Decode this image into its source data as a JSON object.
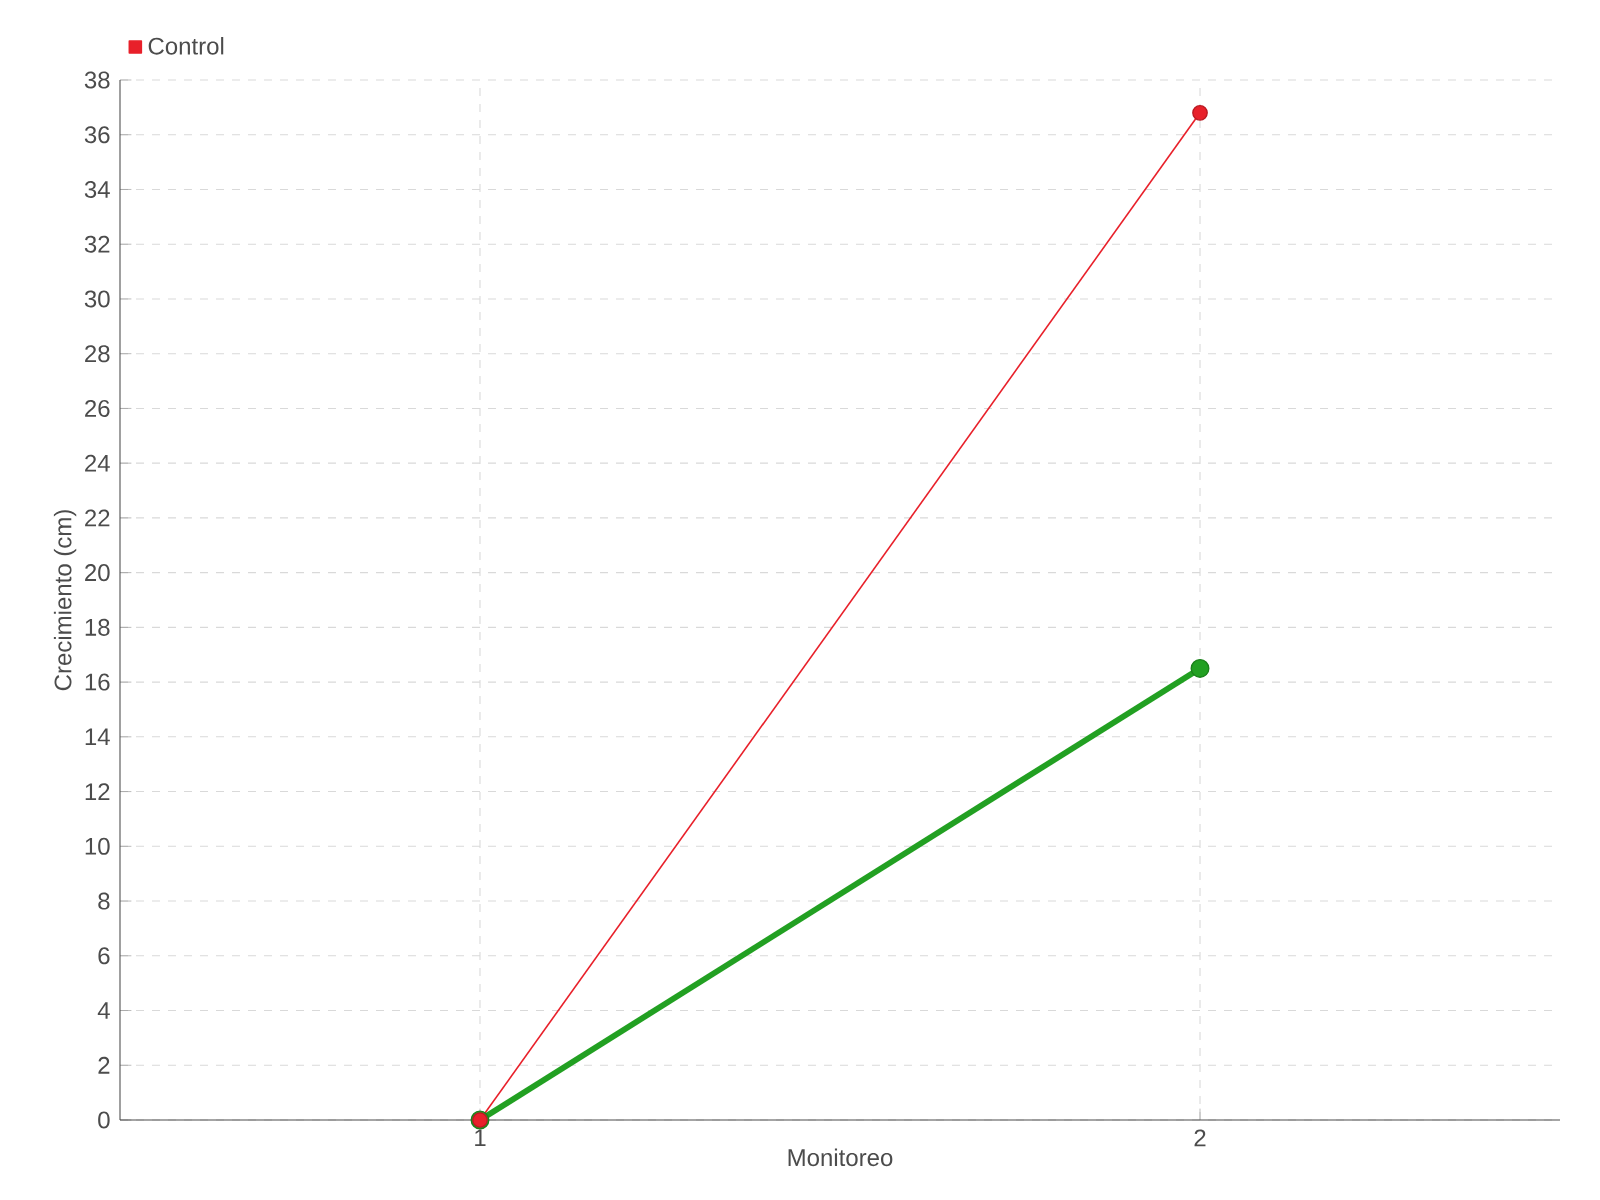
{
  "chart_data": {
    "type": "line",
    "xlabel": "Monitoreo",
    "ylabel": "Crecimiento (cm)",
    "categories": [
      "1",
      "2"
    ],
    "series": [
      {
        "color": "#22a022",
        "values": [
          0,
          16.5
        ]
      },
      {
        "name": "Control",
        "color": "#e8202a",
        "values": [
          0,
          36.8
        ]
      }
    ],
    "ylim": [
      0,
      38
    ],
    "yticks": [
      0,
      2,
      4,
      6,
      8,
      10,
      12,
      14,
      16,
      18,
      20,
      22,
      24,
      26,
      28,
      30,
      32,
      34,
      36,
      38
    ],
    "grid": true,
    "legend": "top left",
    "marker": "circle",
    "line_style": "solid"
  }
}
